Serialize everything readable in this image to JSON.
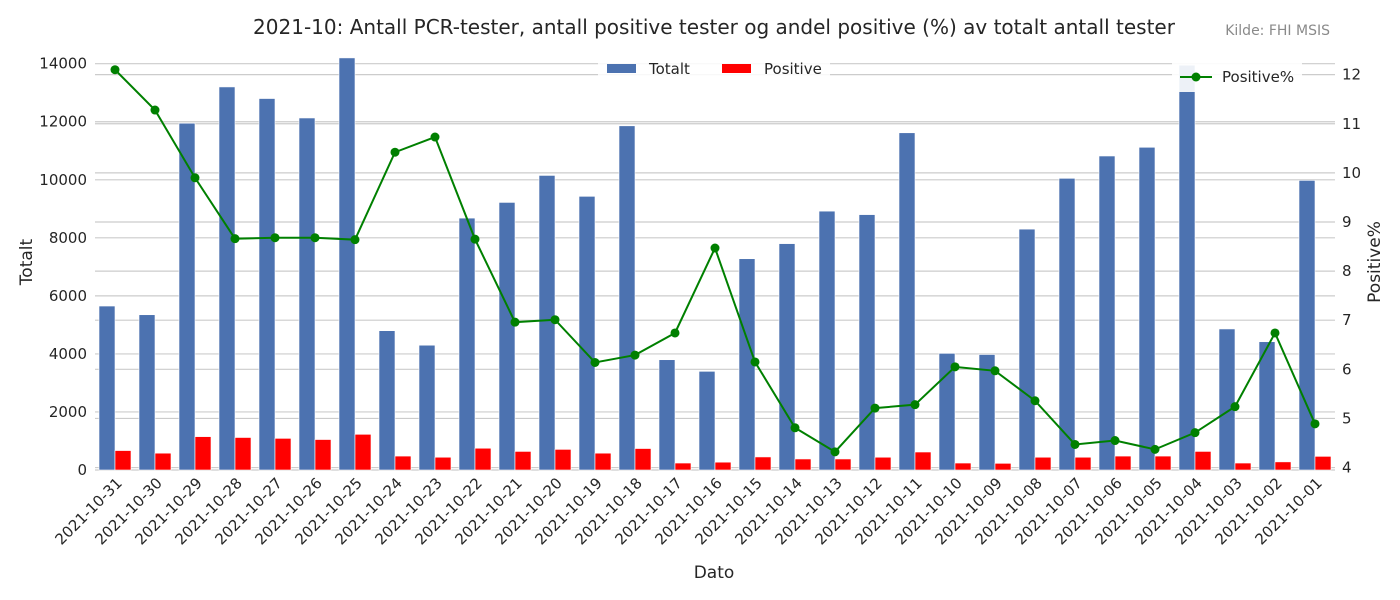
{
  "chart_data": {
    "type": "bar",
    "title": "2021-10: Antall PCR-tester, antall positive tester og andel positive (%) av totalt antall tester",
    "source": "Kilde: FHI MSIS",
    "xlabel": "Dato",
    "ylabel": "Totalt",
    "y2label": "Positive%",
    "ylim": [
      0,
      14300
    ],
    "y2lim": [
      3.95,
      12.4
    ],
    "yticks": [
      0,
      2000,
      4000,
      6000,
      8000,
      10000,
      12000,
      14000
    ],
    "y2ticks": [
      4,
      5,
      6,
      7,
      8,
      9,
      10,
      11,
      12
    ],
    "grid": true,
    "legend_bars_position": "top-center",
    "legend_line_position": "top-right",
    "categories": [
      "2021-10-31",
      "2021-10-30",
      "2021-10-29",
      "2021-10-28",
      "2021-10-27",
      "2021-10-26",
      "2021-10-25",
      "2021-10-24",
      "2021-10-23",
      "2021-10-22",
      "2021-10-21",
      "2021-10-20",
      "2021-10-19",
      "2021-10-18",
      "2021-10-17",
      "2021-10-16",
      "2021-10-15",
      "2021-10-14",
      "2021-10-13",
      "2021-10-12",
      "2021-10-11",
      "2021-10-10",
      "2021-10-09",
      "2021-10-08",
      "2021-10-07",
      "2021-10-06",
      "2021-10-05",
      "2021-10-04",
      "2021-10-03",
      "2021-10-02",
      "2021-10-01"
    ],
    "series": [
      {
        "name": "Totalt",
        "kind": "bar",
        "axis": "left",
        "color": "#4c72b0",
        "values": [
          5650,
          5350,
          11950,
          13200,
          12800,
          12130,
          14200,
          4800,
          4300,
          8680,
          9220,
          10150,
          9430,
          11860,
          3800,
          3400,
          7280,
          7800,
          8920,
          8800,
          11620,
          4020,
          3980,
          8300,
          10050,
          10820,
          11120,
          13950,
          4860,
          4420,
          9980
        ]
      },
      {
        "name": "Positive",
        "kind": "bar",
        "axis": "left",
        "color": "#ff0000",
        "values": [
          670,
          580,
          1150,
          1120,
          1090,
          1050,
          1230,
          480,
          440,
          750,
          640,
          710,
          580,
          740,
          240,
          270,
          450,
          380,
          380,
          440,
          620,
          240,
          230,
          440,
          440,
          480,
          480,
          640,
          240,
          280,
          470
        ]
      },
      {
        "name": "Positive%",
        "kind": "line",
        "axis": "right",
        "color": "#008000",
        "values": [
          12.1,
          11.28,
          9.9,
          8.66,
          8.68,
          8.68,
          8.64,
          10.42,
          10.73,
          8.65,
          6.96,
          7.01,
          6.14,
          6.29,
          6.74,
          8.47,
          6.15,
          4.81,
          4.32,
          5.21,
          5.28,
          6.05,
          5.97,
          5.36,
          4.47,
          4.55,
          4.37,
          4.71,
          5.24,
          6.74,
          4.89
        ]
      }
    ]
  }
}
